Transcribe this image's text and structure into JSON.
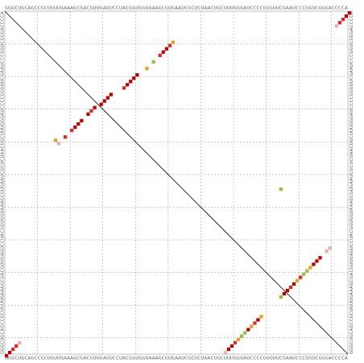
{
  "sequence": "GGGCUGCAGCCGCUGUUGAAAGCGACGUUGAGUCCUACGGUGGUAAAGCGUGAAUCGCUCUAACUGCUUUGGGAUCCCCGGGUUCGAAUCCCGGUCGGGACCCCA",
  "colors": {
    "background": "#ffffff",
    "grid": "#999999",
    "frame": "#999999",
    "diagonal": "#000000",
    "text": "#666666"
  },
  "chart_data": {
    "type": "heatmap",
    "grid_step": 10,
    "probability_colors": {
      "very_high": "#c00000",
      "high": "#dd2b2b",
      "medium": "#e6a020",
      "low": "#8cc63f",
      "very_low": "#e8b0b0"
    },
    "upper_dots": [
      {
        "i": 1,
        "j": 106,
        "p": "very_high"
      },
      {
        "i": 2,
        "j": 105,
        "p": "very_high"
      },
      {
        "i": 3,
        "j": 104,
        "p": "high"
      },
      {
        "i": 4,
        "j": 103,
        "p": "high"
      },
      {
        "i": 5,
        "j": 102,
        "p": "very_low"
      },
      {
        "i": 10,
        "j": 52,
        "p": "medium"
      },
      {
        "i": 11,
        "j": 51,
        "p": "high"
      },
      {
        "i": 12,
        "j": 50,
        "p": "very_high"
      },
      {
        "i": 13,
        "j": 49,
        "p": "very_high"
      },
      {
        "i": 14,
        "j": 48,
        "p": "high"
      },
      {
        "i": 16,
        "j": 46,
        "p": "low"
      },
      {
        "i": 18,
        "j": 44,
        "p": "medium"
      },
      {
        "i": 20,
        "j": 41,
        "p": "very_high"
      },
      {
        "i": 21,
        "j": 40,
        "p": "very_high"
      },
      {
        "i": 22,
        "j": 39,
        "p": "very_high"
      },
      {
        "i": 23,
        "j": 38,
        "p": "very_high"
      },
      {
        "i": 24,
        "j": 37,
        "p": "high"
      },
      {
        "i": 26,
        "j": 33,
        "p": "very_high"
      },
      {
        "i": 27,
        "j": 32,
        "p": "very_high"
      },
      {
        "i": 28,
        "j": 31,
        "p": "very_high"
      },
      {
        "i": 29,
        "j": 30,
        "p": "very_high"
      },
      {
        "i": 30,
        "j": 28,
        "p": "very_high"
      },
      {
        "i": 31,
        "j": 27,
        "p": "high"
      },
      {
        "i": 32,
        "j": 26,
        "p": "very_high"
      },
      {
        "i": 34,
        "j": 24,
        "p": "very_high"
      },
      {
        "i": 35,
        "j": 23,
        "p": "very_high"
      },
      {
        "i": 36,
        "j": 22,
        "p": "very_high"
      },
      {
        "i": 37,
        "j": 21,
        "p": "high"
      },
      {
        "i": 39,
        "j": 19,
        "p": "high"
      },
      {
        "i": 41,
        "j": 17,
        "p": "very_low"
      },
      {
        "i": 40,
        "j": 16,
        "p": "medium"
      },
      {
        "i": 55,
        "j": 85,
        "p": "low"
      }
    ],
    "lower_dots": [
      {
        "i": 1,
        "j": 106,
        "p": "very_high"
      },
      {
        "i": 2,
        "j": 105,
        "p": "very_high"
      },
      {
        "i": 3,
        "j": 104,
        "p": "high"
      },
      {
        "i": 4,
        "j": 103,
        "p": "high"
      },
      {
        "i": 5,
        "j": 102,
        "p": "very_low"
      },
      {
        "i": 68,
        "j": 105,
        "p": "very_low"
      },
      {
        "i": 69,
        "j": 104,
        "p": "very_high"
      },
      {
        "i": 70,
        "j": 103,
        "p": "very_high"
      },
      {
        "i": 71,
        "j": 102,
        "p": "high"
      },
      {
        "i": 72,
        "j": 101,
        "p": "medium"
      },
      {
        "i": 73,
        "j": 100,
        "p": "low"
      },
      {
        "i": 74,
        "j": 99,
        "p": "low"
      },
      {
        "i": 75,
        "j": 98,
        "p": "very_high"
      },
      {
        "i": 76,
        "j": 97,
        "p": "medium"
      },
      {
        "i": 77,
        "j": 96,
        "p": "high"
      },
      {
        "i": 78,
        "j": 95,
        "p": "very_high"
      },
      {
        "i": 79,
        "j": 94,
        "p": "medium"
      },
      {
        "i": 85,
        "j": 88,
        "p": "low"
      },
      {
        "i": 86,
        "j": 87,
        "p": "very_high"
      },
      {
        "i": 87,
        "j": 86,
        "p": "very_high"
      },
      {
        "i": 88,
        "j": 85,
        "p": "high"
      },
      {
        "i": 89,
        "j": 84,
        "p": "very_high"
      },
      {
        "i": 90,
        "j": 83,
        "p": "medium"
      },
      {
        "i": 91,
        "j": 82,
        "p": "high"
      },
      {
        "i": 92,
        "j": 81,
        "p": "low"
      },
      {
        "i": 93,
        "j": 80,
        "p": "low"
      },
      {
        "i": 94,
        "j": 79,
        "p": "medium"
      },
      {
        "i": 95,
        "j": 78,
        "p": "very_high"
      },
      {
        "i": 96,
        "j": 77,
        "p": "very_high"
      },
      {
        "i": 97,
        "j": 76,
        "p": "very_high"
      },
      {
        "i": 99,
        "j": 74,
        "p": "very_low"
      },
      {
        "i": 100,
        "j": 73,
        "p": "very_low"
      }
    ]
  }
}
